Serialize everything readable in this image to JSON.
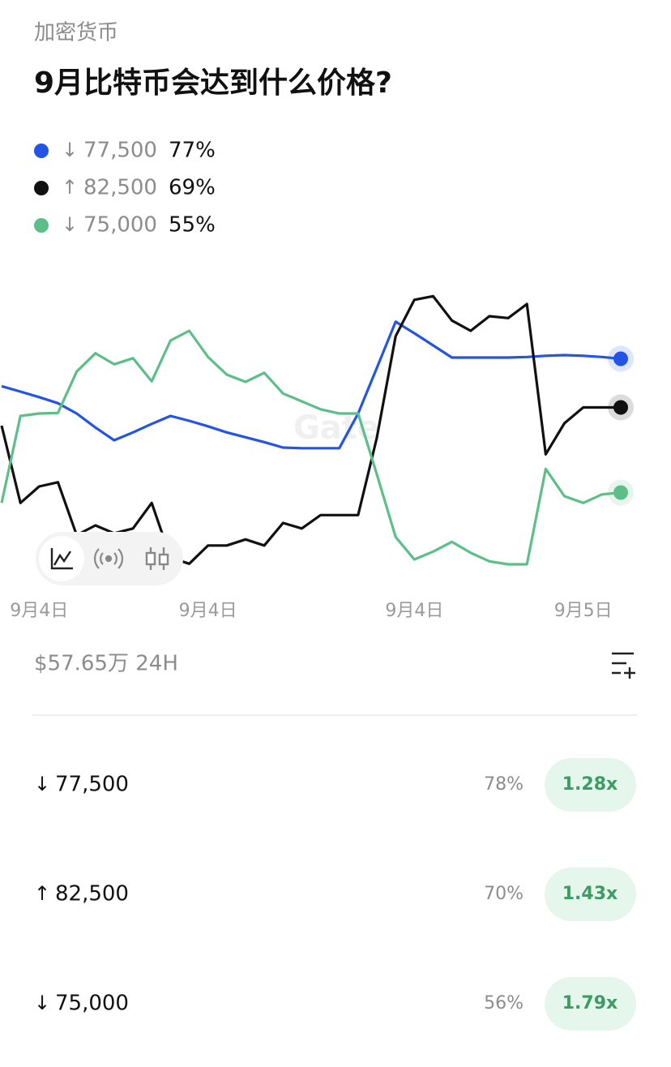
{
  "header": {
    "category": "加密货币",
    "title": "9月比特币会达到什么价格?"
  },
  "chart_data": {
    "type": "line",
    "categories": [
      null,
      null,
      "9月4日",
      null,
      null,
      null,
      null,
      null,
      null,
      null,
      null,
      "9月4日",
      null,
      null,
      null,
      null,
      null,
      null,
      null,
      null,
      null,
      null,
      "9月4日",
      null,
      null,
      null,
      null,
      null,
      null,
      null,
      null,
      "9月5日",
      null,
      null
    ],
    "series": [
      {
        "name": "77,500",
        "arrow": "↓",
        "legend_value": "77%",
        "color": "#2354e6",
        "values": [
          72.5,
          71.6,
          70.7,
          69.7,
          68,
          65.7,
          63.6,
          64.9,
          66.3,
          67.6,
          66.8,
          65.9,
          64.9,
          64.1,
          63.3,
          62.4,
          62.3,
          62.3,
          62.3,
          68,
          75.5,
          83.1,
          81.2,
          79.2,
          77.2,
          77.2,
          77.2,
          77.2,
          77.3,
          77.5,
          77.6,
          77.5,
          77.3,
          77
        ]
      },
      {
        "name": "82,500",
        "arrow": "↑",
        "legend_value": "69%",
        "color": "#111111",
        "values": [
          66,
          53.3,
          56,
          56.7,
          48,
          49.6,
          48.3,
          49.1,
          53.3,
          44.3,
          43.3,
          46.3,
          46.3,
          47.3,
          46.3,
          50,
          49.1,
          51.3,
          51.3,
          51.3,
          64,
          80.7,
          86.7,
          87.3,
          83.3,
          81.6,
          84,
          83.7,
          86,
          61.3,
          66.4,
          69,
          69,
          69
        ]
      },
      {
        "name": "75,000",
        "arrow": "↓",
        "legend_value": "55%",
        "color": "#5dbf88",
        "values": [
          53.3,
          67.6,
          68,
          68.1,
          74.9,
          77.9,
          76.1,
          77.1,
          73.3,
          80,
          81.6,
          77.3,
          74.4,
          73.2,
          74.7,
          71.3,
          70,
          68.7,
          68,
          68,
          58,
          47.7,
          44,
          45.3,
          46.9,
          45.1,
          43.7,
          43.2,
          43.2,
          58.9,
          54.4,
          53.3,
          54.7,
          55
        ]
      }
    ],
    "ylim": [
      40,
      92
    ],
    "watermark": "Gate"
  },
  "summary": {
    "volume": "$57.65万 24H"
  },
  "outcomes": [
    {
      "arrow": "↓",
      "price": "77,500",
      "probability": "78%",
      "payout": "1.28x"
    },
    {
      "arrow": "↑",
      "price": "82,500",
      "probability": "70%",
      "payout": "1.43x"
    },
    {
      "arrow": "↓",
      "price": "75,000",
      "probability": "56%",
      "payout": "1.79x"
    }
  ]
}
